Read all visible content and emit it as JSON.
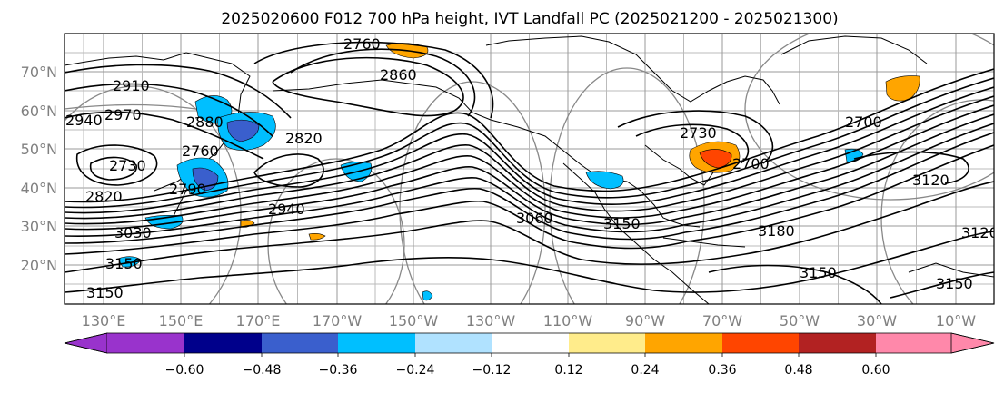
{
  "figure": {
    "title": "2025020600 F012 700 hPa height, IVT Landfall PC (2025021200 - 2025021300)"
  },
  "map": {
    "lat_labels": [
      "70°N",
      "60°N",
      "50°N",
      "40°N",
      "30°N",
      "20°N"
    ],
    "lon_labels": [
      "130°E",
      "150°E",
      "170°E",
      "170°W",
      "150°W",
      "130°W",
      "110°W",
      "90°W",
      "70°W",
      "50°W",
      "30°W",
      "10°W"
    ],
    "contour_labels": [
      "2760",
      "2860",
      "2910",
      "2940",
      "2970",
      "2880",
      "2760",
      "2820",
      "2730",
      "2790",
      "2820",
      "2940",
      "3030",
      "3150",
      "3150",
      "3060",
      "3150",
      "2730",
      "2700",
      "3180",
      "3150",
      "3120",
      "3150",
      "3120",
      "2700"
    ],
    "colors": {
      "height_contours": "#000000",
      "great_circles": "#808080",
      "gridlines": "#999999",
      "coastlines": "#000000",
      "axis_labels": "#808080"
    }
  },
  "colorbar": {
    "ticks": [
      "−0.60",
      "−0.48",
      "−0.36",
      "−0.24",
      "−0.12",
      "0.12",
      "0.24",
      "0.36",
      "0.48",
      "0.60"
    ],
    "colors": {
      "under": "#9933cc",
      "b1": "#00008b",
      "b2": "#3a5fcd",
      "b3": "#00bfff",
      "b4": "#b0e2ff",
      "b5": "#ffffff",
      "b6": "#ffec8b",
      "b7": "#ffa500",
      "b8": "#ff4500",
      "b9": "#b22222",
      "over": "#ff88aa"
    }
  },
  "ivt_fill_colors": {
    "negative_strong": "#3a5fcd",
    "negative": "#00bfff",
    "negative_weak": "#b0e2ff",
    "positive_weak": "#ffa500",
    "positive": "#ff4500",
    "positive_strong": "#b22222"
  }
}
